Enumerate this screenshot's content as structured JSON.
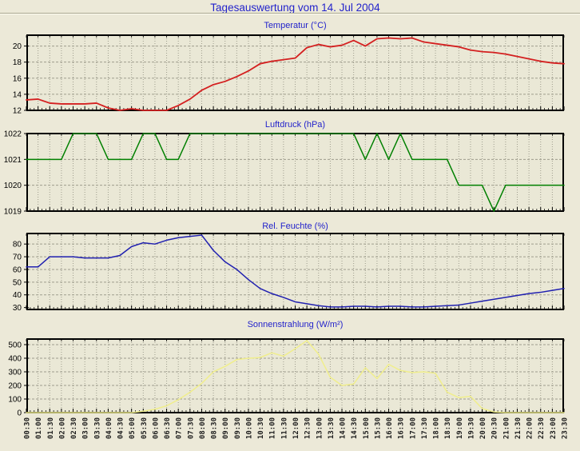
{
  "page_title": "Tagesauswertung vom 14. Jul 2004",
  "colors": {
    "background": "#ece9d8",
    "plot_background": "#eae8d6",
    "grid": "#9e9d8d",
    "axis": "#000000",
    "title_text": "#2323cb",
    "tick_label": "#000000"
  },
  "x_labels": [
    "00:30",
    "01:00",
    "01:30",
    "02:00",
    "02:30",
    "03:00",
    "03:30",
    "04:00",
    "04:30",
    "05:00",
    "05:30",
    "06:00",
    "06:30",
    "07:00",
    "07:30",
    "08:00",
    "08:30",
    "09:00",
    "09:30",
    "10:00",
    "10:30",
    "11:00",
    "11:30",
    "12:00",
    "12:30",
    "13:00",
    "13:30",
    "14:00",
    "14:30",
    "15:00",
    "15:30",
    "16:00",
    "16:30",
    "17:00",
    "17:30",
    "18:00",
    "18:30",
    "19:00",
    "19:30",
    "20:00",
    "20:30",
    "21:00",
    "21:30",
    "22:00",
    "22:30",
    "23:00",
    "23:30"
  ],
  "chart_data": [
    {
      "type": "line",
      "title": "Temperatur (°C)",
      "series_name": "temperature-line",
      "color": "#d42020",
      "ylim": [
        12,
        21.35
      ],
      "yticks": [
        12,
        14,
        16,
        18,
        20
      ],
      "grid": true,
      "categories_ref": "x_labels",
      "values": [
        13.3,
        13.4,
        12.9,
        12.8,
        12.8,
        12.8,
        12.9,
        12.3,
        12.0,
        12.2,
        12.0,
        12.0,
        12.0,
        12.6,
        13.4,
        14.5,
        15.2,
        15.6,
        16.2,
        16.9,
        17.8,
        18.1,
        18.3,
        18.5,
        19.8,
        20.2,
        19.9,
        20.1,
        20.7,
        20.0,
        20.9,
        21.0,
        20.9,
        21.0,
        20.5,
        20.3,
        20.1,
        19.9,
        19.5,
        19.3,
        19.2,
        19.0,
        18.7,
        18.4,
        18.1,
        17.9,
        17.8
      ]
    },
    {
      "type": "line",
      "title": "Luftdruck (hPa)",
      "series_name": "pressure-line",
      "color": "#008000",
      "ylim": [
        1019,
        1022
      ],
      "yticks": [
        1019,
        1020,
        1021,
        1022
      ],
      "grid": true,
      "categories_ref": "x_labels",
      "values": [
        1021,
        1021,
        1021,
        1021,
        1022,
        1022,
        1022,
        1021,
        1021,
        1021,
        1022,
        1022,
        1021,
        1021,
        1022,
        1022,
        1022,
        1022,
        1022,
        1022,
        1022,
        1022,
        1022,
        1022,
        1022,
        1022,
        1022,
        1022,
        1022,
        1021,
        1022,
        1021,
        1022,
        1021,
        1021,
        1021,
        1021,
        1020,
        1020,
        1020,
        1019,
        1020,
        1020,
        1020,
        1020,
        1020,
        1020
      ]
    },
    {
      "type": "line",
      "title": "Rel. Feuchte (%)",
      "series_name": "humidity-line",
      "color": "#2020b0",
      "ylim": [
        28.5,
        88.3
      ],
      "yticks": [
        30,
        40,
        50,
        60,
        70,
        80
      ],
      "grid": true,
      "categories_ref": "x_labels",
      "values": [
        62,
        62,
        70,
        70,
        70,
        69,
        69,
        69,
        71,
        78,
        81,
        80,
        83,
        85,
        86,
        87,
        75,
        66,
        60,
        52,
        45,
        41,
        38,
        34.5,
        33,
        31.5,
        30.5,
        30.5,
        31,
        31,
        30.5,
        31,
        31,
        30.5,
        30.5,
        31,
        31.5,
        32,
        33.5,
        35,
        36.5,
        38,
        39.5,
        41,
        42,
        43.5,
        45
      ]
    },
    {
      "type": "line",
      "title": "Sonnenstrahlung (W/m²)",
      "series_name": "radiation-line",
      "color": "#f0ee8c",
      "ylim": [
        0,
        541
      ],
      "yticks": [
        0,
        100,
        200,
        300,
        400,
        500
      ],
      "grid": true,
      "categories_ref": "x_labels",
      "values": [
        0,
        0,
        0,
        0,
        0,
        0,
        0,
        0,
        0,
        0,
        10,
        25,
        50,
        95,
        150,
        215,
        300,
        340,
        390,
        400,
        405,
        440,
        415,
        470,
        530,
        430,
        260,
        200,
        210,
        330,
        250,
        355,
        310,
        295,
        300,
        290,
        150,
        110,
        120,
        30,
        5,
        0,
        0,
        0,
        0,
        0,
        0
      ]
    }
  ]
}
